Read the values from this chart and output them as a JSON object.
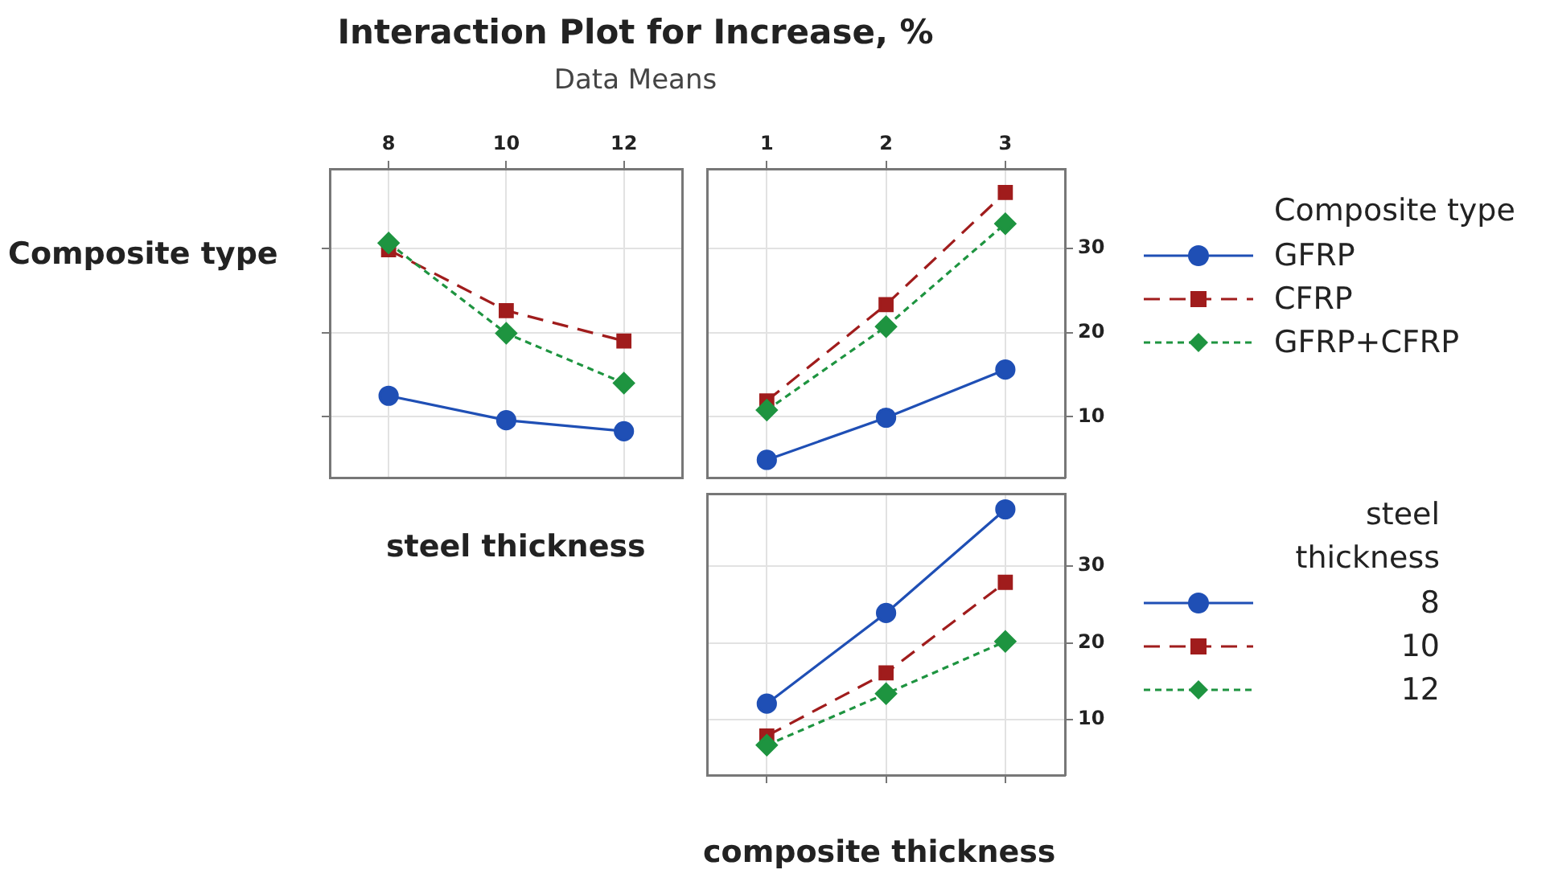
{
  "chart_data": [
    {
      "type": "line",
      "title": "Interaction Plot for Increase, %",
      "subtitle": "Data Means",
      "ylabel": "Composite type",
      "xlabel": "steel thickness",
      "x": [
        8,
        10,
        12
      ],
      "xlim": [
        7,
        13
      ],
      "xticks": [
        8,
        10,
        12
      ],
      "ylim": [
        2.8,
        39.4
      ],
      "yticks": [
        10,
        20,
        30
      ],
      "tick_labels": "x",
      "grid": true,
      "legend": false,
      "series": [
        {
          "color": "#1f4fb5",
          "marker": "circle",
          "line_style": "solid",
          "values": [
            12.5,
            9.6,
            8.3
          ]
        },
        {
          "color": "#a01c1c",
          "marker": "square",
          "line_style": "dashed",
          "values": [
            29.8,
            22.6,
            19.0
          ]
        },
        {
          "color": "#1e9440",
          "marker": "diamond",
          "line_style": "dotted",
          "values": [
            30.6,
            19.9,
            14.0
          ]
        }
      ]
    },
    {
      "type": "line",
      "legend_title": "Composite type",
      "x": [
        1,
        2,
        3
      ],
      "xlim": [
        0.5,
        3.5
      ],
      "xticks": [
        1,
        2,
        3
      ],
      "ylim": [
        2.8,
        39.4
      ],
      "yticks": [
        10,
        20,
        30
      ],
      "grid": true,
      "legend": "right",
      "series": [
        {
          "name": "GFRP",
          "color": "#1f4fb5",
          "marker": "circle",
          "line_style": "solid",
          "values": [
            4.9,
            9.9,
            15.6
          ]
        },
        {
          "name": "CFRP",
          "color": "#a01c1c",
          "marker": "square",
          "line_style": "dashed",
          "values": [
            11.9,
            23.3,
            36.6
          ]
        },
        {
          "name": "GFRP+CFRP",
          "color": "#1e9440",
          "marker": "diamond",
          "line_style": "dotted",
          "values": [
            10.8,
            20.7,
            32.9
          ]
        }
      ]
    },
    {
      "type": "line",
      "legend_title": "steel thickness",
      "xlabel": "composite thickness",
      "x": [
        1,
        2,
        3
      ],
      "xlim": [
        0.5,
        3.5
      ],
      "xticks": [
        1,
        2,
        3
      ],
      "ylim": [
        2.8,
        39.4
      ],
      "yticks": [
        10,
        20,
        30
      ],
      "tick_labels": "y",
      "grid": true,
      "legend": "right",
      "series": [
        {
          "name": "8",
          "color": "#1f4fb5",
          "marker": "circle",
          "line_style": "solid",
          "values": [
            12.1,
            23.9,
            37.4
          ]
        },
        {
          "name": "10",
          "color": "#a01c1c",
          "marker": "square",
          "line_style": "dashed",
          "values": [
            7.9,
            16.1,
            27.9
          ]
        },
        {
          "name": "12",
          "color": "#1e9440",
          "marker": "diamond",
          "line_style": "dotted",
          "values": [
            6.7,
            13.4,
            20.2
          ]
        }
      ]
    }
  ]
}
